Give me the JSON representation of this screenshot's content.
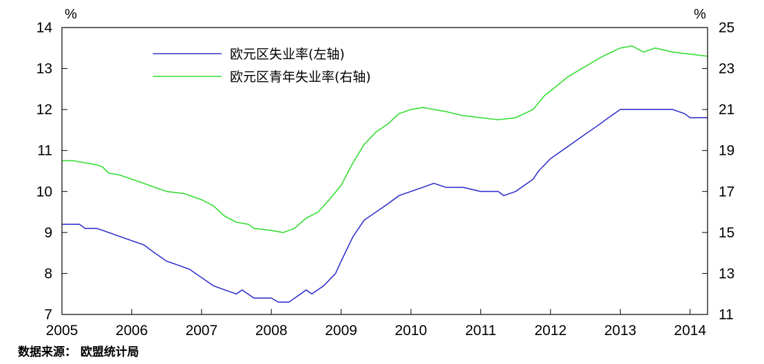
{
  "chart_data": {
    "type": "line",
    "left_unit": "%",
    "right_unit": "%",
    "x_ticks": [
      "2005",
      "2006",
      "2007",
      "2008",
      "2009",
      "2010",
      "2011",
      "2012",
      "2013",
      "2014"
    ],
    "xlim": [
      2005,
      2014.25
    ],
    "left_axis": {
      "ylim": [
        7,
        14
      ],
      "ticks": [
        "7",
        "8",
        "9",
        "10",
        "11",
        "12",
        "13",
        "14"
      ]
    },
    "right_axis": {
      "ylim": [
        11,
        25
      ],
      "ticks": [
        "11",
        "13",
        "15",
        "17",
        "19",
        "21",
        "23",
        "25"
      ]
    },
    "legend_position": "top-left",
    "series": [
      {
        "name": "欧元区失业率(左轴)",
        "axis": "left",
        "color": "#3333cc",
        "points": [
          [
            2005.0,
            9.2
          ],
          [
            2005.25,
            9.2
          ],
          [
            2005.33,
            9.1
          ],
          [
            2005.5,
            9.1
          ],
          [
            2005.67,
            9.0
          ],
          [
            2005.83,
            8.9
          ],
          [
            2006.0,
            8.8
          ],
          [
            2006.17,
            8.7
          ],
          [
            2006.33,
            8.5
          ],
          [
            2006.5,
            8.3
          ],
          [
            2006.67,
            8.2
          ],
          [
            2006.83,
            8.1
          ],
          [
            2007.0,
            7.9
          ],
          [
            2007.17,
            7.7
          ],
          [
            2007.33,
            7.6
          ],
          [
            2007.5,
            7.5
          ],
          [
            2007.58,
            7.6
          ],
          [
            2007.75,
            7.4
          ],
          [
            2008.0,
            7.4
          ],
          [
            2008.1,
            7.3
          ],
          [
            2008.25,
            7.3
          ],
          [
            2008.42,
            7.5
          ],
          [
            2008.5,
            7.6
          ],
          [
            2008.58,
            7.5
          ],
          [
            2008.75,
            7.7
          ],
          [
            2008.92,
            8.0
          ],
          [
            2009.0,
            8.3
          ],
          [
            2009.17,
            8.9
          ],
          [
            2009.33,
            9.3
          ],
          [
            2009.5,
            9.5
          ],
          [
            2009.67,
            9.7
          ],
          [
            2009.83,
            9.9
          ],
          [
            2010.0,
            10.0
          ],
          [
            2010.17,
            10.1
          ],
          [
            2010.33,
            10.2
          ],
          [
            2010.5,
            10.1
          ],
          [
            2010.75,
            10.1
          ],
          [
            2011.0,
            10.0
          ],
          [
            2011.25,
            10.0
          ],
          [
            2011.33,
            9.9
          ],
          [
            2011.5,
            10.0
          ],
          [
            2011.75,
            10.3
          ],
          [
            2011.83,
            10.5
          ],
          [
            2012.0,
            10.8
          ],
          [
            2012.25,
            11.1
          ],
          [
            2012.5,
            11.4
          ],
          [
            2012.67,
            11.6
          ],
          [
            2012.83,
            11.8
          ],
          [
            2013.0,
            12.0
          ],
          [
            2013.25,
            12.0
          ],
          [
            2013.5,
            12.0
          ],
          [
            2013.75,
            12.0
          ],
          [
            2013.92,
            11.9
          ],
          [
            2014.0,
            11.8
          ],
          [
            2014.25,
            11.8
          ]
        ]
      },
      {
        "name": "欧元区青年失业率(右轴)",
        "axis": "right",
        "color": "#33dd33",
        "points": [
          [
            2005.0,
            18.5
          ],
          [
            2005.17,
            18.5
          ],
          [
            2005.33,
            18.4
          ],
          [
            2005.5,
            18.3
          ],
          [
            2005.58,
            18.2
          ],
          [
            2005.67,
            17.9
          ],
          [
            2005.83,
            17.8
          ],
          [
            2006.0,
            17.6
          ],
          [
            2006.17,
            17.4
          ],
          [
            2006.33,
            17.2
          ],
          [
            2006.5,
            17.0
          ],
          [
            2006.75,
            16.9
          ],
          [
            2007.0,
            16.6
          ],
          [
            2007.17,
            16.3
          ],
          [
            2007.33,
            15.8
          ],
          [
            2007.5,
            15.5
          ],
          [
            2007.67,
            15.4
          ],
          [
            2007.75,
            15.2
          ],
          [
            2008.0,
            15.1
          ],
          [
            2008.17,
            15.0
          ],
          [
            2008.33,
            15.2
          ],
          [
            2008.5,
            15.7
          ],
          [
            2008.67,
            16.0
          ],
          [
            2008.83,
            16.6
          ],
          [
            2009.0,
            17.3
          ],
          [
            2009.17,
            18.4
          ],
          [
            2009.33,
            19.3
          ],
          [
            2009.5,
            19.9
          ],
          [
            2009.67,
            20.3
          ],
          [
            2009.83,
            20.8
          ],
          [
            2010.0,
            21.0
          ],
          [
            2010.17,
            21.1
          ],
          [
            2010.33,
            21.0
          ],
          [
            2010.5,
            20.9
          ],
          [
            2010.75,
            20.7
          ],
          [
            2011.0,
            20.6
          ],
          [
            2011.25,
            20.5
          ],
          [
            2011.5,
            20.6
          ],
          [
            2011.75,
            21.0
          ],
          [
            2011.92,
            21.7
          ],
          [
            2012.0,
            21.9
          ],
          [
            2012.25,
            22.6
          ],
          [
            2012.5,
            23.1
          ],
          [
            2012.75,
            23.6
          ],
          [
            2013.0,
            24.0
          ],
          [
            2013.17,
            24.1
          ],
          [
            2013.33,
            23.8
          ],
          [
            2013.5,
            24.0
          ],
          [
            2013.75,
            23.8
          ],
          [
            2014.0,
            23.7
          ],
          [
            2014.25,
            23.6
          ]
        ]
      }
    ]
  },
  "source": "数据来源： 欧盟统计局"
}
